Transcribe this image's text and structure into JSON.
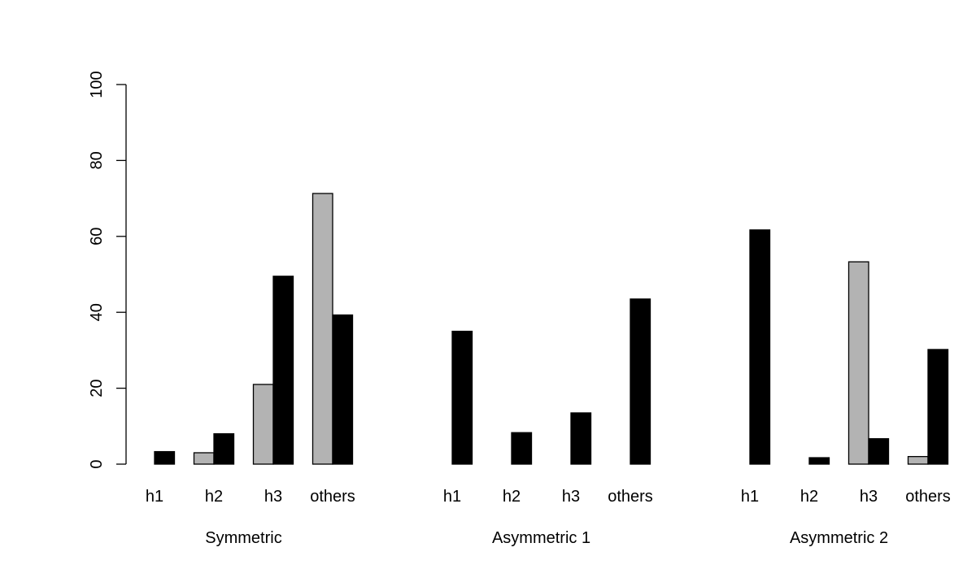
{
  "chart_data": {
    "type": "bar",
    "title": "",
    "xlabel": "",
    "ylabel": "",
    "ylim": [
      0,
      100
    ],
    "yticks": [
      0,
      20,
      40,
      60,
      80,
      100
    ],
    "categories": [
      "h1",
      "h2",
      "h3",
      "others"
    ],
    "series_colors": [
      "#b3b3b3",
      "#000000"
    ],
    "groups": [
      {
        "label": "Symmetric",
        "series": [
          {
            "values": [
              0,
              3,
              21,
              71.3
            ]
          },
          {
            "values": [
              3.3,
              8,
              49.5,
              39.3
            ]
          }
        ]
      },
      {
        "label": "Asymmetric 1",
        "series": [
          {
            "values": [
              0,
              0,
              0,
              0
            ]
          },
          {
            "values": [
              35,
              8.3,
              13.5,
              43.5
            ]
          }
        ]
      },
      {
        "label": "Asymmetric 2",
        "series": [
          {
            "values": [
              0,
              0,
              53.3,
              2
            ]
          },
          {
            "values": [
              61.7,
              1.7,
              6.7,
              30.2
            ]
          }
        ]
      }
    ]
  }
}
